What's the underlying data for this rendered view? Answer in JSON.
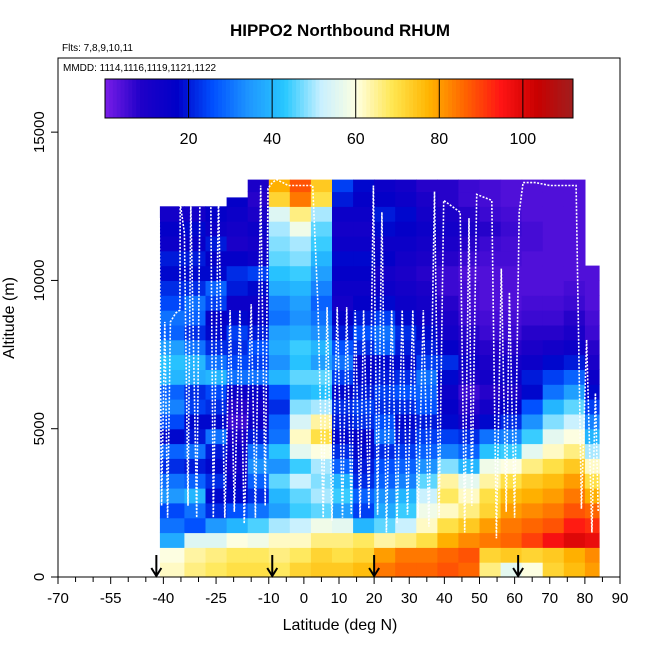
{
  "chart_data": {
    "type": "heatmap",
    "title": "HIPPO2 Northbound RHUM",
    "notes": [
      "Flts: 7,8,9,10,11",
      "MMDD: 1114,1116,1119,1121,1122"
    ],
    "xlabel": "Latitude (deg N)",
    "ylabel": "Altitude (m)",
    "xlim": [
      -70,
      90
    ],
    "ylim": [
      0,
      17500
    ],
    "x_ticks": [
      -70,
      -55,
      -40,
      -25,
      -10,
      0,
      10,
      20,
      30,
      40,
      50,
      60,
      70,
      80,
      90
    ],
    "x_tick_labels": [
      "-70",
      "-55",
      "-40",
      "-25",
      "-10",
      "0",
      "10",
      "20",
      "30",
      "40",
      "50",
      "60",
      "70",
      "80",
      "90"
    ],
    "y_ticks": [
      0,
      5000,
      10000,
      15000
    ],
    "y_tick_labels": [
      "0",
      "5000",
      "10000",
      "15000"
    ],
    "colorbar": {
      "range": [
        0,
        112
      ],
      "ticks": [
        20,
        40,
        60,
        80,
        100
      ],
      "tick_labels": [
        "20",
        "40",
        "60",
        "80",
        "100"
      ],
      "colors": [
        "#7a1de8",
        "#1f00c8",
        "#0000c8",
        "#0050ff",
        "#1e96ff",
        "#28c8ff",
        "#c8f0ff",
        "#ffffe0",
        "#ffe650",
        "#ffb400",
        "#ff6400",
        "#ff1414",
        "#c80000",
        "#a01e1e"
      ]
    },
    "flight_arrows_lat": [
      -42,
      -9,
      20,
      61
    ],
    "altitude_levels_m": [
      250,
      750,
      1250,
      1750,
      2250,
      2750,
      3250,
      3750,
      4250,
      4750,
      5250,
      5750,
      6250,
      6750,
      7250,
      7750,
      8250,
      8750,
      9250,
      9750,
      10250,
      10750,
      11250,
      11750,
      12250,
      12750,
      13250
    ],
    "latitude_bands": [
      {
        "lat_start": -41,
        "lat_end": -34,
        "top_m": 12500,
        "rh": [
          62,
          60,
          38,
          30,
          25,
          35,
          30,
          22,
          28,
          18,
          25,
          32,
          28,
          40,
          42,
          36,
          28,
          30,
          25,
          22,
          18,
          20,
          14,
          16,
          12
        ]
      },
      {
        "lat_start": -34,
        "lat_end": -28,
        "top_m": 12500,
        "rh": [
          66,
          64,
          55,
          26,
          30,
          40,
          28,
          20,
          30,
          20,
          18,
          24,
          22,
          38,
          40,
          30,
          22,
          28,
          30,
          22,
          18,
          20,
          15,
          18,
          12
        ]
      },
      {
        "lat_start": -28,
        "lat_end": -22,
        "top_m": 12500,
        "rh": [
          68,
          66,
          55,
          35,
          22,
          18,
          22,
          18,
          20,
          30,
          18,
          22,
          25,
          40,
          30,
          22,
          18,
          16,
          24,
          28,
          18,
          16,
          20,
          14,
          16
        ]
      },
      {
        "lat_start": -22,
        "lat_end": -16,
        "top_m": 12800,
        "rh": [
          70,
          68,
          60,
          40,
          26,
          18,
          15,
          12,
          14,
          10,
          6,
          8,
          14,
          30,
          25,
          22,
          24,
          18,
          14,
          20,
          22,
          16,
          10,
          12,
          14,
          16
        ]
      },
      {
        "lat_start": -16,
        "lat_end": -10,
        "top_m": 13400,
        "rh": [
          70,
          68,
          58,
          45,
          30,
          22,
          28,
          34,
          30,
          20,
          14,
          12,
          16,
          30,
          24,
          26,
          20,
          16,
          14,
          18,
          24,
          14,
          12,
          14,
          10,
          8,
          10
        ]
      },
      {
        "lat_start": -10,
        "lat_end": -4,
        "top_m": 13400,
        "rh": [
          68,
          66,
          62,
          50,
          36,
          40,
          46,
          34,
          42,
          30,
          28,
          22,
          26,
          40,
          34,
          38,
          36,
          30,
          32,
          38,
          42,
          46,
          48,
          50,
          55,
          72,
          78
        ]
      },
      {
        "lat_start": -4,
        "lat_end": 2,
        "top_m": 13400,
        "rh": [
          72,
          68,
          62,
          52,
          44,
          46,
          52,
          44,
          56,
          62,
          54,
          48,
          40,
          46,
          42,
          44,
          38,
          34,
          36,
          40,
          44,
          48,
          50,
          58,
          66,
          84,
          88
        ]
      },
      {
        "lat_start": 2,
        "lat_end": 8,
        "top_m": 13400,
        "rh": [
          74,
          72,
          66,
          58,
          46,
          50,
          48,
          50,
          60,
          70,
          64,
          50,
          42,
          46,
          36,
          40,
          34,
          30,
          28,
          32,
          36,
          40,
          44,
          46,
          50,
          70,
          74
        ]
      },
      {
        "lat_start": 8,
        "lat_end": 14,
        "top_m": 13400,
        "rh": [
          74,
          70,
          66,
          56,
          36,
          44,
          40,
          28,
          22,
          18,
          20,
          22,
          18,
          24,
          30,
          26,
          20,
          16,
          12,
          14,
          16,
          18,
          14,
          12,
          14,
          20,
          24
        ]
      },
      {
        "lat_start": 14,
        "lat_end": 20,
        "top_m": 13400,
        "rh": [
          76,
          72,
          68,
          40,
          24,
          28,
          22,
          20,
          18,
          16,
          22,
          24,
          20,
          18,
          16,
          22,
          26,
          20,
          16,
          14,
          16,
          18,
          14,
          12,
          14,
          16,
          18
        ]
      },
      {
        "lat_start": 20,
        "lat_end": 26,
        "top_m": 13400,
        "rh": [
          84,
          80,
          64,
          46,
          38,
          34,
          28,
          26,
          22,
          30,
          26,
          22,
          24,
          20,
          18,
          28,
          30,
          24,
          18,
          14,
          12,
          16,
          14,
          18,
          20,
          16,
          14
        ]
      },
      {
        "lat_start": 26,
        "lat_end": 32,
        "top_m": 13400,
        "rh": [
          86,
          84,
          66,
          52,
          44,
          40,
          32,
          28,
          24,
          20,
          18,
          22,
          26,
          22,
          18,
          20,
          22,
          18,
          14,
          12,
          10,
          12,
          14,
          16,
          18,
          14,
          12
        ]
      },
      {
        "lat_start": 32,
        "lat_end": 38,
        "top_m": 13400,
        "rh": [
          86,
          84,
          70,
          62,
          58,
          52,
          46,
          34,
          28,
          24,
          20,
          26,
          28,
          30,
          24,
          20,
          18,
          14,
          12,
          10,
          8,
          10,
          12,
          14,
          12,
          10,
          8
        ]
      },
      {
        "lat_start": 38,
        "lat_end": 44,
        "top_m": 13400,
        "rh": [
          88,
          86,
          78,
          70,
          62,
          68,
          64,
          48,
          32,
          24,
          18,
          16,
          14,
          18,
          22,
          16,
          12,
          10,
          8,
          6,
          6,
          8,
          10,
          12,
          10,
          8,
          8
        ]
      },
      {
        "lat_start": 44,
        "lat_end": 50,
        "top_m": 13400,
        "rh": [
          86,
          88,
          82,
          74,
          66,
          62,
          56,
          40,
          28,
          22,
          12,
          8,
          6,
          10,
          14,
          10,
          8,
          6,
          5,
          5,
          4,
          6,
          8,
          10,
          8,
          6,
          6
        ]
      },
      {
        "lat_start": 50,
        "lat_end": 56,
        "top_m": 13400,
        "rh": [
          66,
          72,
          84,
          80,
          72,
          70,
          64,
          58,
          42,
          30,
          18,
          12,
          8,
          12,
          10,
          8,
          6,
          5,
          4,
          4,
          4,
          5,
          6,
          8,
          6,
          5,
          5
        ]
      },
      {
        "lat_start": 56,
        "lat_end": 62,
        "top_m": 13400,
        "rh": [
          56,
          74,
          86,
          84,
          80,
          76,
          70,
          60,
          44,
          32,
          22,
          16,
          10,
          14,
          12,
          8,
          6,
          5,
          4,
          4,
          4,
          5,
          5,
          6,
          5,
          4,
          4
        ]
      },
      {
        "lat_start": 62,
        "lat_end": 68,
        "top_m": 13400,
        "rh": [
          60,
          72,
          90,
          86,
          82,
          78,
          74,
          66,
          56,
          44,
          34,
          26,
          18,
          20,
          14,
          10,
          8,
          6,
          5,
          4,
          4,
          4,
          5,
          5,
          4,
          4,
          4
        ]
      },
      {
        "lat_start": 68,
        "lat_end": 74,
        "top_m": 13400,
        "rh": [
          72,
          74,
          96,
          88,
          84,
          80,
          76,
          70,
          62,
          56,
          48,
          40,
          30,
          24,
          18,
          12,
          8,
          6,
          5,
          4,
          4,
          4,
          4,
          4,
          4,
          4,
          4
        ]
      },
      {
        "lat_start": 74,
        "lat_end": 80,
        "top_m": 13400,
        "rh": [
          76,
          78,
          100,
          94,
          88,
          84,
          80,
          74,
          66,
          60,
          52,
          46,
          36,
          28,
          20,
          14,
          10,
          8,
          6,
          5,
          4,
          4,
          4,
          4,
          4,
          4,
          4
        ]
      },
      {
        "lat_start": 80,
        "lat_end": 84,
        "top_m": 10500,
        "rh": [
          80,
          82,
          98,
          92,
          86,
          78,
          70,
          62,
          50,
          40,
          32,
          24,
          18,
          14,
          10,
          8,
          6,
          5,
          4,
          4,
          4
        ]
      }
    ],
    "flight_track": [
      [
        -41.5,
        600
      ],
      [
        -41.2,
        12100
      ],
      [
        -40.5,
        2400
      ],
      [
        -39.6,
        8600
      ],
      [
        -38.8,
        2000
      ],
      [
        -38.0,
        8600
      ],
      [
        -36.5,
        8900
      ],
      [
        -35.3,
        9000
      ],
      [
        -35.2,
        12600
      ],
      [
        -34.0,
        11600
      ],
      [
        -33.0,
        2400
      ],
      [
        -32.2,
        12600
      ],
      [
        -30.5,
        2000
      ],
      [
        -29.6,
        12600
      ],
      [
        -27.5,
        12600
      ],
      [
        -26.5,
        12700
      ],
      [
        -25.8,
        2000
      ],
      [
        -24.3,
        12700
      ],
      [
        -22.5,
        2000
      ],
      [
        -21.0,
        9000
      ],
      [
        -19.8,
        2200
      ],
      [
        -18.2,
        9000
      ],
      [
        -17.0,
        1800
      ],
      [
        -15.0,
        9200
      ],
      [
        -13.8,
        2000
      ],
      [
        -12.3,
        13200
      ],
      [
        -11.0,
        2400
      ],
      [
        -10.2,
        13100
      ],
      [
        -9.0,
        13300
      ],
      [
        -7.8,
        13400
      ],
      [
        -6.0,
        13300
      ],
      [
        -4.5,
        13200
      ],
      [
        2.5,
        13200
      ],
      [
        4.0,
        9200
      ],
      [
        5.5,
        2000
      ],
      [
        6.6,
        9100
      ],
      [
        8.0,
        1900
      ],
      [
        9.5,
        9100
      ],
      [
        11.0,
        2000
      ],
      [
        12.2,
        9100
      ],
      [
        13.5,
        2100
      ],
      [
        14.6,
        9000
      ],
      [
        16.0,
        2000
      ],
      [
        17.0,
        9000
      ],
      [
        18.5,
        2300
      ],
      [
        19.8,
        13200
      ],
      [
        21.0,
        2100
      ],
      [
        22.2,
        12300
      ],
      [
        23.5,
        1500
      ],
      [
        25.0,
        9000
      ],
      [
        26.5,
        1800
      ],
      [
        28.0,
        9000
      ],
      [
        29.5,
        2100
      ],
      [
        31.0,
        9000
      ],
      [
        32.5,
        2000
      ],
      [
        34.0,
        9000
      ],
      [
        35.6,
        1700
      ],
      [
        37.2,
        13000
      ],
      [
        38.5,
        2000
      ],
      [
        39.8,
        12700
      ],
      [
        44.5,
        12300
      ],
      [
        45.8,
        1500
      ],
      [
        47.0,
        12100
      ],
      [
        47.8,
        2400
      ],
      [
        49.2,
        12900
      ],
      [
        53.5,
        12700
      ],
      [
        54.8,
        1300
      ],
      [
        56.2,
        10400
      ],
      [
        57.6,
        2200
      ],
      [
        58.5,
        9600
      ],
      [
        60.0,
        2000
      ],
      [
        61.3,
        12300
      ],
      [
        62.4,
        13300
      ],
      [
        66.0,
        13300
      ],
      [
        70.0,
        13200
      ],
      [
        74.0,
        13200
      ],
      [
        77.5,
        13200
      ],
      [
        79.0,
        2300
      ],
      [
        80.5,
        8000
      ],
      [
        82.0,
        1500
      ],
      [
        83.0,
        6200
      ],
      [
        83.8,
        2200
      ]
    ]
  }
}
